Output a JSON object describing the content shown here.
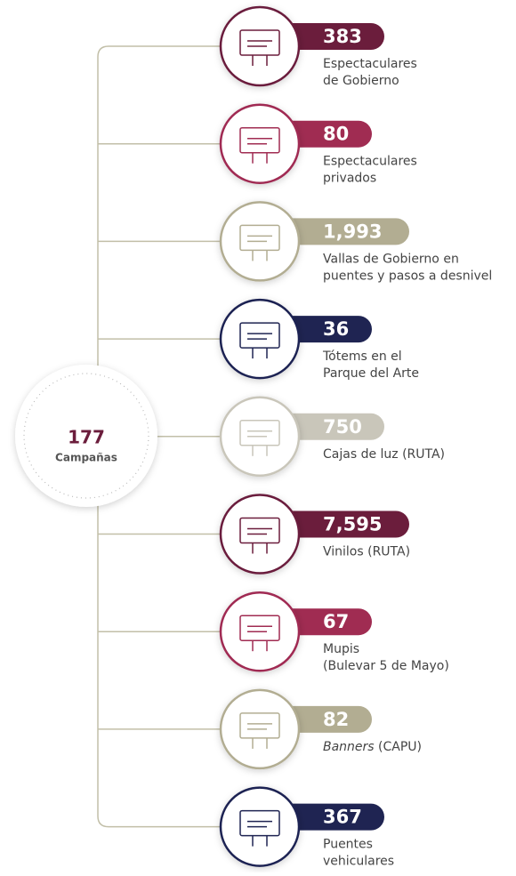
{
  "center": {
    "number": "177",
    "label": "Campañas"
  },
  "items": [
    {
      "number": "383",
      "color": "#6b1d3c",
      "label": [
        "Espectaculares",
        "de Gobierno"
      ]
    },
    {
      "number": "80",
      "color": "#a02c52",
      "label": [
        "Espectaculares",
        "privados"
      ]
    },
    {
      "number": "1,993",
      "color": "#b2ad92",
      "label": [
        "Vallas de Gobierno en",
        "puentes y pasos a desnivel"
      ]
    },
    {
      "number": "36",
      "color": "#1f2452",
      "label": [
        "Tótems en el",
        "Parque del Arte"
      ]
    },
    {
      "number": "750",
      "color": "#c9c6ba",
      "label": [
        "Cajas de luz (RUTA)"
      ]
    },
    {
      "number": "7,595",
      "color": "#6b1d3c",
      "label": [
        "Vinilos (RUTA)"
      ]
    },
    {
      "number": "67",
      "color": "#a02c52",
      "label": [
        "Mupis",
        "(Bulevar 5 de Mayo)"
      ]
    },
    {
      "number": "82",
      "color": "#b2ad92",
      "label": [
        {
          "italic": "Banners",
          "rest": " (CAPU)"
        }
      ]
    },
    {
      "number": "367",
      "color": "#1f2452",
      "label": [
        "Puentes",
        "vehiculares"
      ]
    }
  ]
}
